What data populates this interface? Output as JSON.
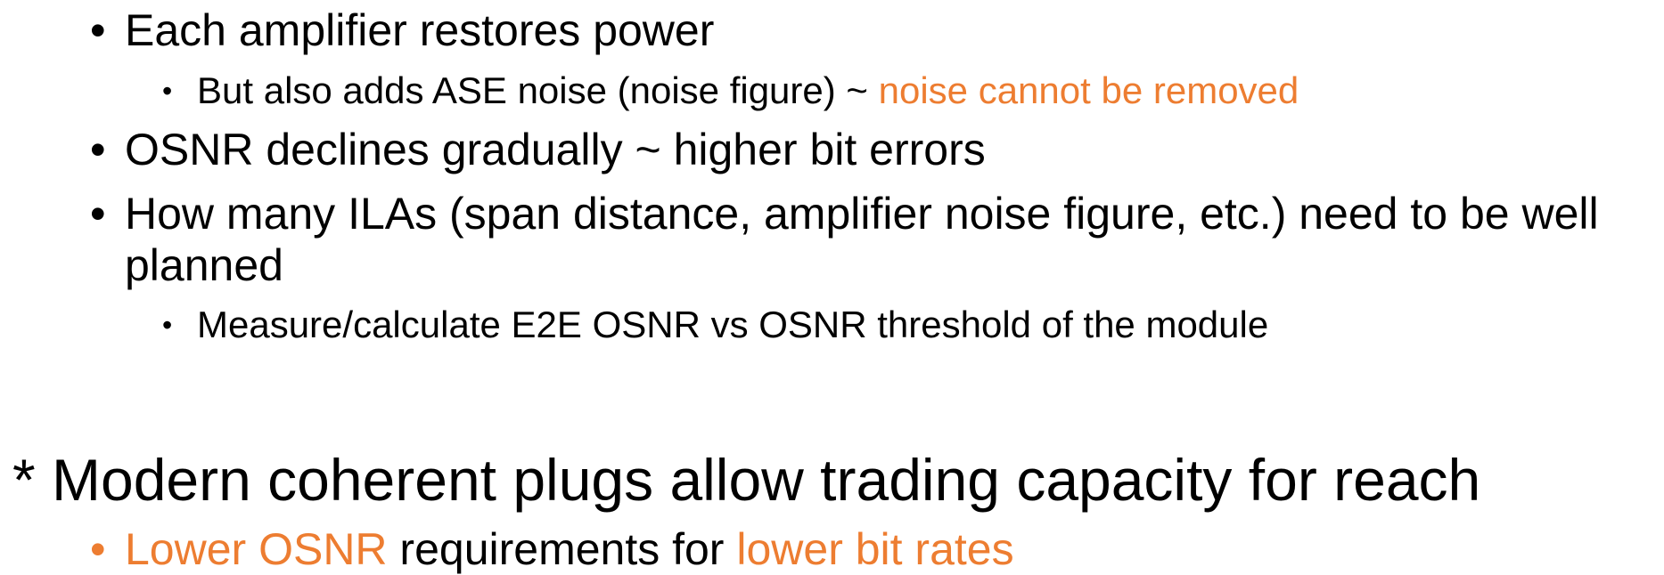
{
  "items": [
    {
      "level": 1,
      "segments": [
        {
          "text": "Each amplifier restores power"
        }
      ]
    },
    {
      "level": 2,
      "segments": [
        {
          "text": "But also adds ASE noise (noise figure) ~ "
        },
        {
          "text": "noise cannot be removed",
          "color": "#ed7d31"
        }
      ]
    },
    {
      "level": 1,
      "segments": [
        {
          "text": "OSNR declines gradually ~ higher bit errors"
        }
      ]
    },
    {
      "level": 1,
      "segments": [
        {
          "text": "How many ILAs (span distance, amplifier noise figure, etc.) need to be well planned"
        }
      ]
    },
    {
      "level": 2,
      "segments": [
        {
          "text": "Measure/calculate E2E OSNR vs OSNR threshold of the module"
        }
      ]
    },
    {
      "level": 0,
      "segments": [
        {
          "text": "* Modern coherent plugs allow trading capacity for reach"
        }
      ]
    },
    {
      "level": 1,
      "segments": [
        {
          "text": "Lower OSNR",
          "color": "#ed7d31"
        },
        {
          "text": " requirements for "
        },
        {
          "text": "lower bit rates",
          "color": "#ed7d31"
        }
      ]
    }
  ]
}
